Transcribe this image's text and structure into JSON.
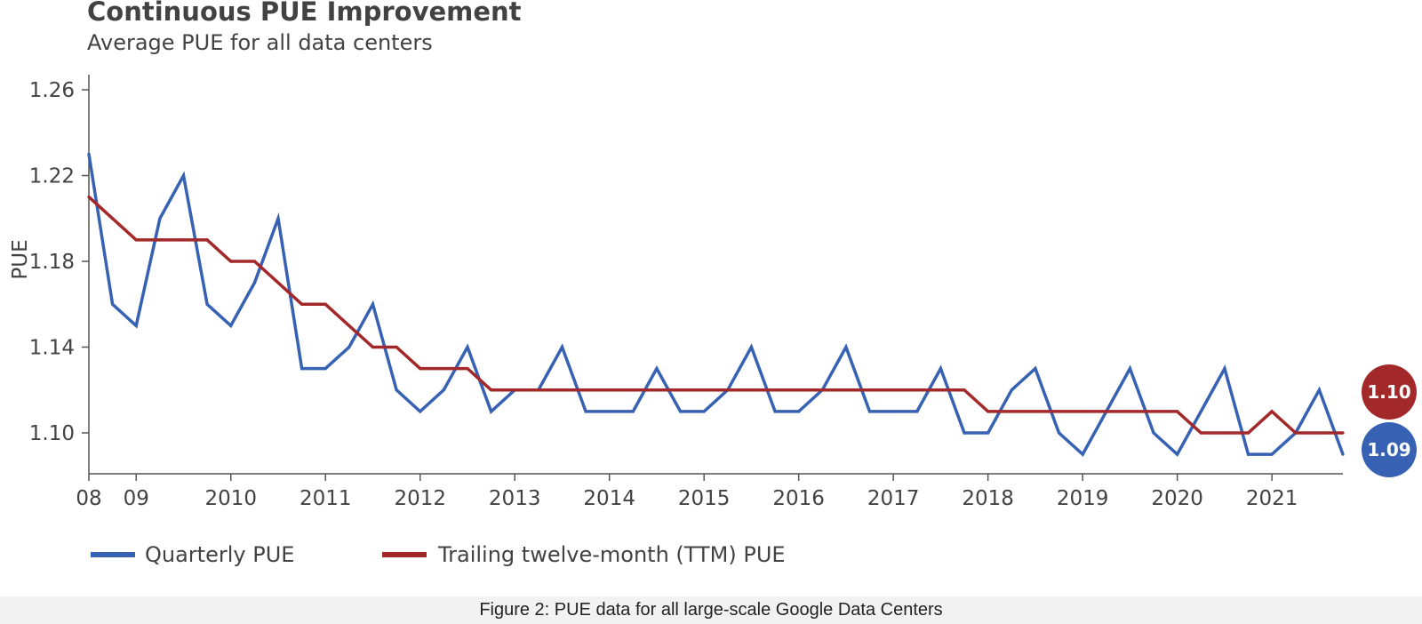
{
  "chart_data": {
    "type": "line",
    "title": "Continuous PUE Improvement",
    "subtitle": "Average PUE for all data centers",
    "xlabel": "",
    "ylabel": "PUE",
    "ylim": [
      1.08,
      1.265
    ],
    "yticks": [
      "1.10",
      "1.14",
      "1.18",
      "1.22",
      "1.26"
    ],
    "ytick_values": [
      1.1,
      1.14,
      1.18,
      1.22,
      1.26
    ],
    "xticks": [
      "08",
      "09",
      "2010",
      "2011",
      "2012",
      "2013",
      "2014",
      "2015",
      "2016",
      "2017",
      "2018",
      "2019",
      "2020",
      "2021"
    ],
    "xtick_values": [
      2008.0,
      2008.5,
      2009.5,
      2010.5,
      2011.5,
      2012.5,
      2013.5,
      2014.5,
      2015.5,
      2016.5,
      2017.5,
      2018.5,
      2019.5,
      2020.5
    ],
    "xlim": [
      2008.0,
      2021.25
    ],
    "grid": false,
    "legend_position": "bottom-left",
    "series": [
      {
        "name": "Quarterly PUE",
        "color": "#3762b4",
        "x": [
          2008.0,
          2008.25,
          2008.5,
          2008.75,
          2009.0,
          2009.25,
          2009.5,
          2009.75,
          2010.0,
          2010.25,
          2010.5,
          2010.75,
          2011.0,
          2011.25,
          2011.5,
          2011.75,
          2012.0,
          2012.25,
          2012.5,
          2012.75,
          2013.0,
          2013.25,
          2013.5,
          2013.75,
          2014.0,
          2014.25,
          2014.5,
          2014.75,
          2015.0,
          2015.25,
          2015.5,
          2015.75,
          2016.0,
          2016.25,
          2016.5,
          2016.75,
          2017.0,
          2017.25,
          2017.5,
          2017.75,
          2018.0,
          2018.25,
          2018.5,
          2018.75,
          2019.0,
          2019.25,
          2019.5,
          2019.75,
          2020.0,
          2020.25,
          2020.5,
          2020.75,
          2021.0,
          2021.25
        ],
        "values": [
          1.23,
          1.16,
          1.15,
          1.2,
          1.22,
          1.16,
          1.15,
          1.17,
          1.2,
          1.13,
          1.13,
          1.14,
          1.16,
          1.12,
          1.11,
          1.12,
          1.14,
          1.11,
          1.12,
          1.12,
          1.14,
          1.11,
          1.11,
          1.11,
          1.13,
          1.11,
          1.11,
          1.12,
          1.14,
          1.11,
          1.11,
          1.12,
          1.14,
          1.11,
          1.11,
          1.11,
          1.13,
          1.1,
          1.1,
          1.12,
          1.13,
          1.1,
          1.09,
          1.11,
          1.13,
          1.1,
          1.09,
          1.11,
          1.13,
          1.09,
          1.09,
          1.1,
          1.12,
          1.09
        ],
        "end_label": "1.09"
      },
      {
        "name": "Trailing twelve-month (TTM) PUE",
        "color": "#a3282a",
        "x": [
          2008.0,
          2008.25,
          2008.5,
          2008.75,
          2009.0,
          2009.25,
          2009.5,
          2009.75,
          2010.0,
          2010.25,
          2010.5,
          2010.75,
          2011.0,
          2011.25,
          2011.5,
          2011.75,
          2012.0,
          2012.25,
          2012.5,
          2012.75,
          2013.0,
          2013.25,
          2013.5,
          2013.75,
          2014.0,
          2014.25,
          2014.5,
          2014.75,
          2015.0,
          2015.25,
          2015.5,
          2015.75,
          2016.0,
          2016.25,
          2016.5,
          2016.75,
          2017.0,
          2017.25,
          2017.5,
          2017.75,
          2018.0,
          2018.25,
          2018.5,
          2018.75,
          2019.0,
          2019.25,
          2019.5,
          2019.75,
          2020.0,
          2020.25,
          2020.5,
          2020.75,
          2021.0,
          2021.25
        ],
        "values": [
          1.21,
          1.2,
          1.19,
          1.19,
          1.19,
          1.19,
          1.18,
          1.18,
          1.17,
          1.16,
          1.16,
          1.15,
          1.14,
          1.14,
          1.13,
          1.13,
          1.13,
          1.12,
          1.12,
          1.12,
          1.12,
          1.12,
          1.12,
          1.12,
          1.12,
          1.12,
          1.12,
          1.12,
          1.12,
          1.12,
          1.12,
          1.12,
          1.12,
          1.12,
          1.12,
          1.12,
          1.12,
          1.12,
          1.11,
          1.11,
          1.11,
          1.11,
          1.11,
          1.11,
          1.11,
          1.11,
          1.11,
          1.1,
          1.1,
          1.1,
          1.11,
          1.1,
          1.1,
          1.1
        ],
        "end_label": "1.10"
      }
    ]
  },
  "caption": "Figure 2: PUE data for all large-scale Google Data Centers"
}
